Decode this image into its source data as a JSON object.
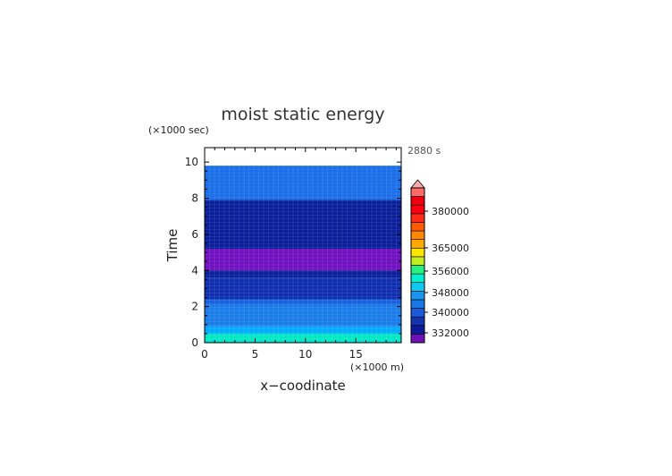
{
  "chart_data": {
    "type": "heatmap",
    "title": "moist static energy",
    "xlabel": "x−coodinate",
    "ylabel": "Time",
    "x_unit_label": "(×1000 m)",
    "y_unit_label": "(×1000 sec)",
    "time_label": "2880 s",
    "xlim": [
      0,
      19.5
    ],
    "ylim": [
      0,
      10.8
    ],
    "x_ticks": [
      0,
      5,
      10,
      15
    ],
    "y_ticks": [
      0,
      2,
      4,
      6,
      8,
      10
    ],
    "data_top": 9.8,
    "layers": [
      {
        "y0": 0.0,
        "y1": 0.2,
        "color": "#00e5cc"
      },
      {
        "y0": 0.2,
        "y1": 0.5,
        "color": "#00e8c0"
      },
      {
        "y0": 0.5,
        "y1": 0.9,
        "color": "#00aaff"
      },
      {
        "y0": 0.9,
        "y1": 2.1,
        "color": "#1a7ce8"
      },
      {
        "y0": 2.1,
        "y1": 2.4,
        "color": "#1562e0"
      },
      {
        "y0": 2.4,
        "y1": 3.6,
        "color": "#0f2fb0"
      },
      {
        "y0": 3.6,
        "y1": 4.0,
        "color": "#0a1f9a"
      },
      {
        "y0": 4.0,
        "y1": 5.2,
        "color": "#7010c0"
      },
      {
        "y0": 5.2,
        "y1": 7.9,
        "color": "#0a1f9a"
      },
      {
        "y0": 7.9,
        "y1": 9.8,
        "color": "#1a6ee8"
      }
    ],
    "colorbar": {
      "labels": [
        "380000",
        "365000",
        "356000",
        "348000",
        "340000",
        "332000"
      ],
      "colors": [
        "#6e12b8",
        "#0e1a9a",
        "#1433b0",
        "#1a5ad8",
        "#1878e6",
        "#1a96f0",
        "#10c8f0",
        "#00f0d0",
        "#28f080",
        "#c0ee20",
        "#ffe600",
        "#ffa800",
        "#ff8800",
        "#ff5a00",
        "#ff2a1a",
        "#ff0010",
        "#ee0010",
        "#ff6a6a"
      ],
      "overflow_color": "#ffaaaa"
    }
  }
}
